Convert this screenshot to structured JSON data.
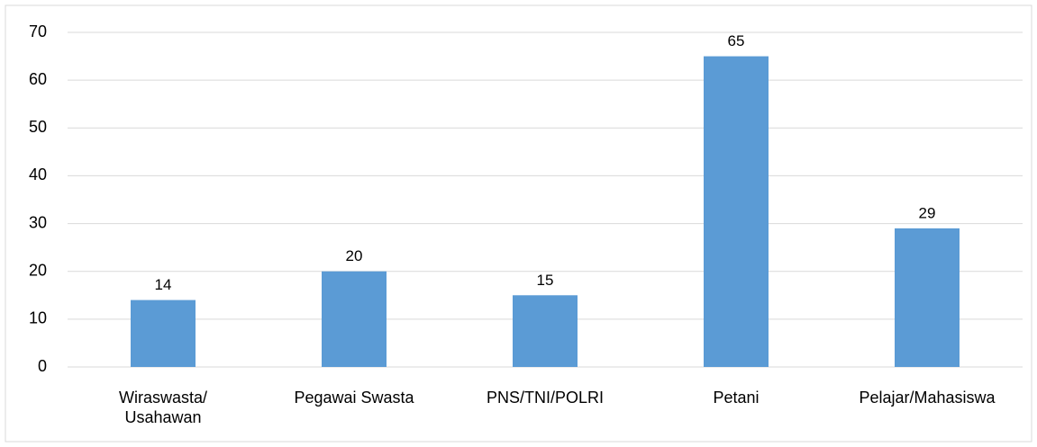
{
  "chart_data": {
    "type": "bar",
    "categories": [
      "Wiraswasta/\nUsahawan",
      "Pegawai Swasta",
      "PNS/TNI/POLRI",
      "Petani",
      "Pelajar/Mahasiswa"
    ],
    "values": [
      14,
      20,
      15,
      65,
      29
    ],
    "color": "#5b9bd5",
    "ylim": [
      0,
      70
    ],
    "yticks": [
      0,
      10,
      20,
      30,
      40,
      50,
      60,
      70
    ],
    "grid": true
  }
}
